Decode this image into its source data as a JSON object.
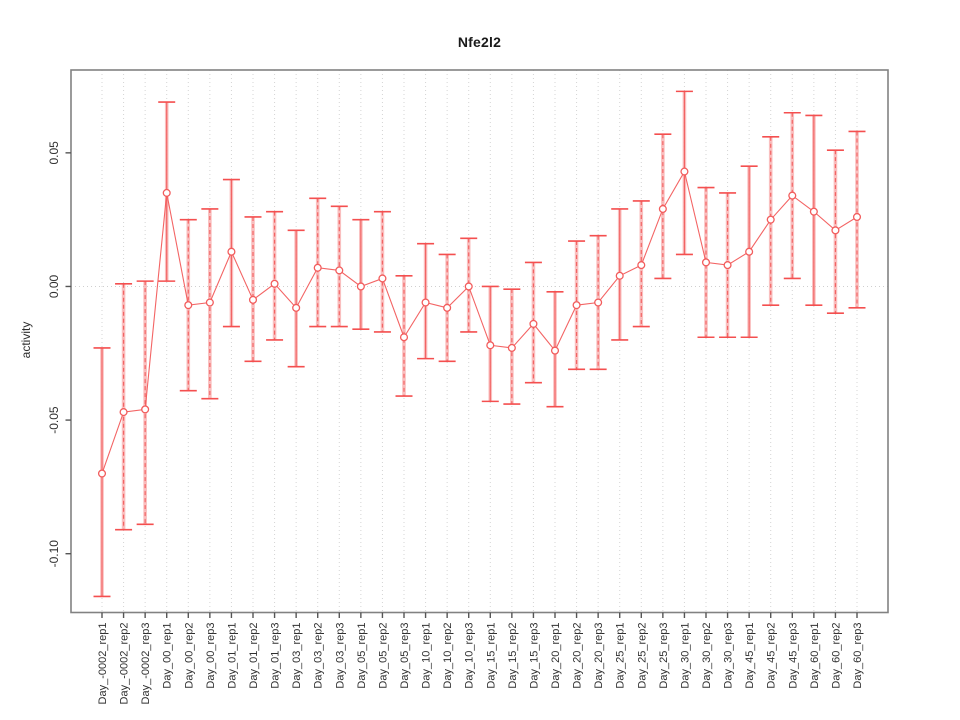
{
  "title": "Nfe2l2",
  "colors": {
    "series_red": "#f25c5c",
    "bar_halo_pink": "#f9aaaa",
    "cap_red": "#f44f4f",
    "grid_gray": "#d4d4d4",
    "zero_line_gray": "#cfcfcf",
    "frame_gray": "#828282",
    "tick_gray": "#555555",
    "text_dark": "#303030",
    "background": "#ffffff"
  },
  "y_axis": {
    "label": "activity",
    "tick_labels": [
      "0.05",
      "0.00",
      "-0.05",
      "-0.10"
    ]
  },
  "x_axis": {
    "label": "",
    "tick_label_rotation": "vertical"
  },
  "chart_data": {
    "type": "scatter",
    "subtype": "points-with-error-bars-and-connecting-line",
    "title": "Nfe2l2",
    "xlabel": "",
    "ylabel": "activity",
    "ylim": [
      -0.122,
      0.081
    ],
    "yticks": [
      0.05,
      0.0,
      -0.05,
      -0.1
    ],
    "ytick_labels": [
      "0.05",
      "0.00",
      "-0.05",
      "-0.10"
    ],
    "grid": "vertical dotted gridline at every category; dotted horizontal line at y=0",
    "legend": "none",
    "categories": [
      "Day_-0002_rep1",
      "Day_-0002_rep2",
      "Day_-0002_rep3",
      "Day_00_rep1",
      "Day_00_rep2",
      "Day_00_rep3",
      "Day_01_rep1",
      "Day_01_rep2",
      "Day_01_rep3",
      "Day_03_rep1",
      "Day_03_rep2",
      "Day_03_rep3",
      "Day_05_rep1",
      "Day_05_rep2",
      "Day_05_rep3",
      "Day_10_rep1",
      "Day_10_rep2",
      "Day_10_rep3",
      "Day_15_rep1",
      "Day_15_rep2",
      "Day_15_rep3",
      "Day_20_rep1",
      "Day_20_rep2",
      "Day_20_rep3",
      "Day_25_rep1",
      "Day_25_rep2",
      "Day_25_rep3",
      "Day_30_rep1",
      "Day_30_rep2",
      "Day_30_rep3",
      "Day_45_rep1",
      "Day_45_rep2",
      "Day_45_rep3",
      "Day_60_rep1",
      "Day_60_rep2",
      "Day_60_rep3"
    ],
    "series": [
      {
        "name": "activity",
        "values": [
          -0.07,
          -0.047,
          -0.046,
          0.035,
          -0.007,
          -0.006,
          0.013,
          -0.005,
          0.001,
          -0.008,
          0.007,
          0.006,
          0.0,
          0.003,
          -0.019,
          -0.006,
          -0.008,
          0.0,
          -0.022,
          -0.023,
          -0.014,
          -0.024,
          -0.007,
          -0.006,
          0.004,
          0.008,
          0.029,
          0.043,
          0.009,
          0.008,
          0.013,
          0.025,
          0.034,
          0.028,
          0.021,
          0.026
        ],
        "err_low": [
          -0.116,
          -0.091,
          -0.089,
          0.002,
          -0.039,
          -0.042,
          -0.015,
          -0.028,
          -0.02,
          -0.03,
          -0.015,
          -0.015,
          -0.016,
          -0.017,
          -0.041,
          -0.027,
          -0.028,
          -0.017,
          -0.043,
          -0.044,
          -0.036,
          -0.045,
          -0.031,
          -0.031,
          -0.02,
          -0.015,
          0.003,
          0.012,
          -0.019,
          -0.019,
          -0.019,
          -0.007,
          0.003,
          -0.007,
          -0.01,
          -0.008
        ],
        "err_high": [
          -0.023,
          0.001,
          0.002,
          0.069,
          0.025,
          0.029,
          0.04,
          0.026,
          0.028,
          0.021,
          0.033,
          0.03,
          0.025,
          0.028,
          0.004,
          0.016,
          0.012,
          0.018,
          0.0,
          -0.001,
          0.009,
          -0.002,
          0.017,
          0.019,
          0.029,
          0.032,
          0.057,
          0.073,
          0.037,
          0.035,
          0.045,
          0.056,
          0.065,
          0.064,
          0.051,
          0.058
        ]
      }
    ]
  }
}
